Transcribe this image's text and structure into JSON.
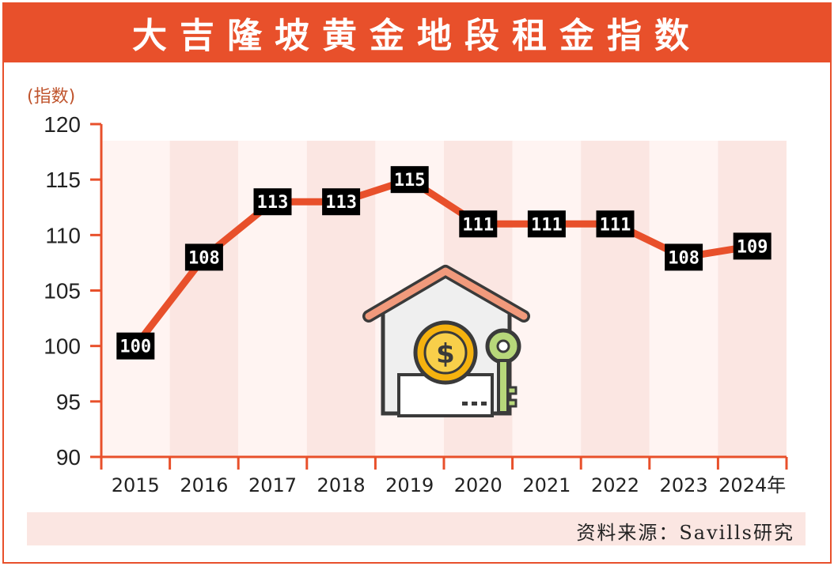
{
  "title": "大吉隆坡黄金地段租金指数",
  "source": "资料来源：Savills研究",
  "colors": {
    "accent": "#e8502b",
    "label_bg": "#000000",
    "band": "#fbe6e2"
  },
  "chart_data": {
    "type": "line",
    "ylabel": "(指数)",
    "xlabel": "",
    "ylim": [
      90,
      120
    ],
    "yticks": [
      90,
      95,
      100,
      105,
      110,
      115,
      120
    ],
    "grid": false,
    "categories": [
      "2015",
      "2016",
      "2017",
      "2018",
      "2019",
      "2020",
      "2021",
      "2022",
      "2023",
      "2024年"
    ],
    "values": [
      100,
      108,
      113,
      113,
      115,
      111,
      111,
      111,
      108,
      109
    ],
    "data_labels": [
      "100",
      "108",
      "113",
      "113",
      "115",
      "111",
      "111",
      "111",
      "108",
      "109"
    ]
  }
}
